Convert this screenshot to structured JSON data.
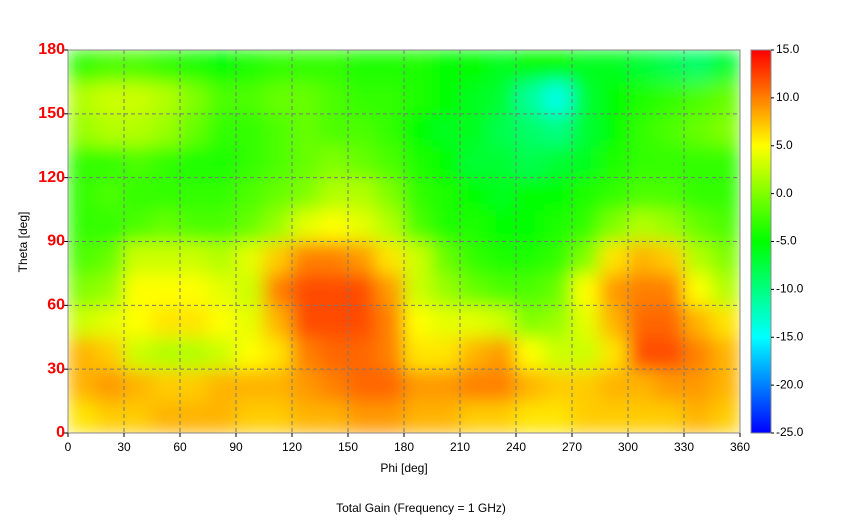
{
  "chart_data": {
    "type": "heatmap",
    "title": "Total Gain (Frequency = 1 GHz)",
    "x_label": "Phi [deg]",
    "y_label": "Theta [deg]",
    "x": [
      7.5,
      22.5,
      37.5,
      52.5,
      67.5,
      82.5,
      97.5,
      112.5,
      127.5,
      142.5,
      157.5,
      172.5,
      187.5,
      202.5,
      217.5,
      232.5,
      247.5,
      262.5,
      277.5,
      292.5,
      307.5,
      322.5,
      337.5,
      352.5
    ],
    "y": [
      7.5,
      22.5,
      37.5,
      52.5,
      67.5,
      82.5,
      97.5,
      112.5,
      127.5,
      142.5,
      157.5,
      172.5
    ],
    "z": [
      [
        6,
        7,
        7,
        8,
        8,
        8,
        7,
        7,
        8,
        8,
        9,
        9,
        8,
        8,
        7,
        7,
        6,
        6,
        7,
        7,
        7,
        7,
        8,
        7
      ],
      [
        8,
        9,
        8,
        7,
        7,
        8,
        8,
        8,
        9,
        10,
        11,
        11,
        9,
        9,
        10,
        10,
        8,
        7,
        7,
        8,
        8,
        9,
        9,
        8
      ],
      [
        8,
        7,
        3,
        2,
        2,
        3,
        5,
        6,
        10,
        11,
        11,
        10,
        6,
        6,
        8,
        9,
        5,
        3,
        3,
        6,
        12,
        12,
        10,
        8
      ],
      [
        3,
        4,
        5,
        6,
        6,
        5,
        4,
        8,
        12,
        12,
        12,
        10,
        5,
        4,
        4,
        3,
        0,
        1,
        4,
        8,
        11,
        11,
        8,
        6
      ],
      [
        0,
        1,
        5,
        5,
        5,
        4,
        3,
        10,
        12,
        12,
        12,
        9,
        3,
        1,
        -1,
        -2,
        -2,
        -1,
        5,
        9,
        10,
        10,
        5,
        2
      ],
      [
        -2,
        -1,
        3,
        3,
        3,
        2,
        4,
        7,
        10,
        10,
        9,
        6,
        3,
        -1,
        -3,
        -4,
        -4,
        -3,
        0,
        6,
        8,
        7,
        2,
        0
      ],
      [
        -3,
        -3,
        -2,
        -1,
        -2,
        -2,
        -1,
        1,
        4,
        5,
        4,
        2,
        -2,
        -4,
        -4,
        -5,
        -5,
        -4,
        -3,
        0,
        2,
        1,
        -1,
        -2
      ],
      [
        -3,
        -2,
        -3,
        -3,
        -3,
        -3,
        -2,
        -1,
        0,
        2,
        2,
        0,
        -3,
        -4,
        -5,
        -6,
        -5,
        -5,
        -4,
        -3,
        -2,
        -2,
        -3,
        -3
      ],
      [
        -3,
        -3,
        -2,
        -3,
        -4,
        -4,
        -3,
        -2,
        -1,
        0,
        -1,
        -2,
        -4,
        -5,
        -7,
        -7,
        -8,
        -7,
        -6,
        -4,
        -3,
        -3,
        -3,
        -3
      ],
      [
        1,
        2,
        2,
        1,
        -1,
        -3,
        -3,
        -2,
        -1,
        -2,
        -2,
        -3,
        -5,
        -6,
        -6,
        -8,
        -9,
        -10,
        -7,
        -5,
        -3,
        -2,
        -1,
        0
      ],
      [
        2,
        3,
        3,
        2,
        0,
        -2,
        -2,
        -1,
        -1,
        -2,
        -3,
        -3,
        -4,
        -5,
        -6,
        -7,
        -11,
        -14,
        -7,
        -5,
        -4,
        -3,
        -2,
        -1
      ],
      [
        -3,
        -2,
        -2,
        -3,
        -4,
        -5,
        -4,
        -3,
        -3,
        -3,
        -4,
        -4,
        -4,
        -5,
        -5,
        -6,
        -5,
        -5,
        -6,
        -6,
        -7,
        -8,
        -9,
        -7
      ]
    ],
    "colorscale": [
      "#0000ff",
      "#00ffff",
      "#00ff00",
      "#ffff00",
      "#ff0000"
    ],
    "zlim": [
      -25,
      15
    ],
    "zticks": [
      {
        "value": 15,
        "label": "15.0"
      },
      {
        "value": 10,
        "label": "10.0"
      },
      {
        "value": 5,
        "label": "5.0"
      },
      {
        "value": 0,
        "label": "0.0"
      },
      {
        "value": -5,
        "label": "-5.0"
      },
      {
        "value": -10,
        "label": "-10.0"
      },
      {
        "value": -15,
        "label": "-15.0"
      },
      {
        "value": -20,
        "label": "-20.0"
      },
      {
        "value": -25,
        "label": "-25.0"
      }
    ],
    "xlim": [
      0,
      360
    ],
    "xticks": [
      0,
      30,
      60,
      90,
      120,
      150,
      180,
      210,
      240,
      270,
      300,
      330,
      360
    ],
    "ylim": [
      0,
      180
    ],
    "yticks": [
      0,
      30,
      60,
      90,
      120,
      150,
      180
    ],
    "grid": true
  }
}
